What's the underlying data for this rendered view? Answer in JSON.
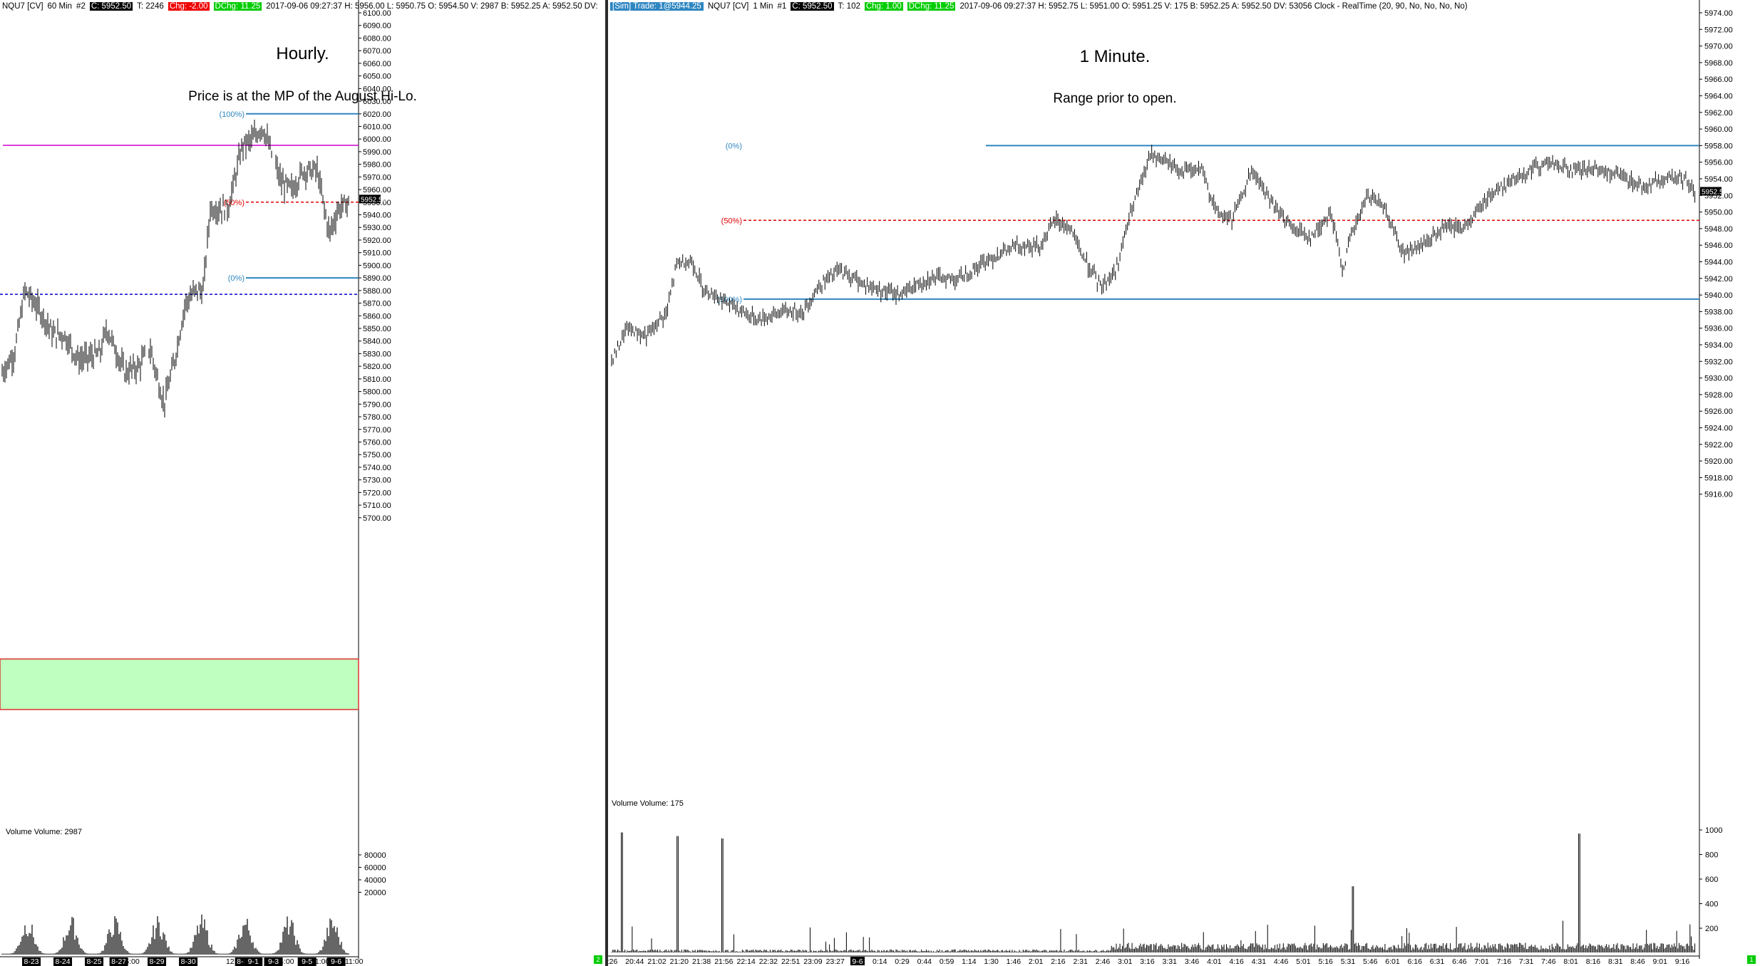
{
  "left": {
    "topbar": {
      "symbol": "NQU7 [CV]",
      "interval": "60 Min",
      "chart_num": "#2",
      "close_badge": "C: 5952.50",
      "ticks_badge": "T: 2246",
      "change_badge": "Chg: -2.00",
      "dchg_badge": "DChg: 11.25",
      "info": "2017-09-06 09:27:37 H: 5956.00 L: 5950.75 O: 5954.50 V: 2987 B: 5952.25 A: 5952.50 DV:"
    },
    "title": "Hourly.",
    "subtitle": "Price is at the MP of the August Hi-Lo.",
    "price_axis": [
      "6100.00",
      "6090.00",
      "6080.00",
      "6070.00",
      "6060.00",
      "6050.00",
      "6040.00",
      "6030.00",
      "6020.00",
      "6010.00",
      "6000.00",
      "5990.00",
      "5980.00",
      "5970.00",
      "5960.00",
      "5950.00",
      "5940.00",
      "5930.00",
      "5920.00",
      "5910.00",
      "5900.00",
      "5890.00",
      "5880.00",
      "5870.00",
      "5860.00",
      "5850.00",
      "5840.00",
      "5830.00",
      "5820.00",
      "5810.00",
      "5800.00",
      "5790.00",
      "5780.00",
      "5770.00",
      "5760.00",
      "5750.00",
      "5740.00",
      "5730.00",
      "5720.00",
      "5710.00",
      "5700.00"
    ],
    "current_price": "5952.50",
    "fib_labels": {
      "top": "(100%)",
      "mid": "(50%)",
      "bottom": "(0%)"
    },
    "volume_label": "Volume  Volume: 2987",
    "volume_axis": [
      "80000",
      "60000",
      "40000",
      "20000"
    ],
    "time_axis": [
      "8-23",
      "8-24",
      "8-25",
      "8-27",
      "5:00",
      "8-29",
      "8-30",
      "12:00",
      "8-31",
      "9-1",
      "9-3",
      "4:00",
      "9-5",
      "11:00",
      "9-6",
      "11:00"
    ],
    "status": "2"
  },
  "right": {
    "topbar": {
      "sim_badge": "[Sim]  Trade: 1@5944.25",
      "symbol": "NQU7 [CV]",
      "interval": "1 Min",
      "chart_num": "#1",
      "close_badge": "C: 5952.50",
      "ticks_badge": "T: 102",
      "change_badge": "Chg: 1.00",
      "dchg_badge": "DChg: 11.25",
      "info": "2017-09-06 09:27:37 H: 5952.75 L: 5951.00 O: 5951.25 V: 175 B: 5952.25 A: 5952.50 DV: 53056 Clock - RealTime  (20, 90, No, No, No, No)"
    },
    "title": "1 Minute.",
    "subtitle": "Range prior to open.",
    "price_axis": [
      "5974.00",
      "5972.00",
      "5970.00",
      "5968.00",
      "5966.00",
      "5964.00",
      "5962.00",
      "5960.00",
      "5958.00",
      "5956.00",
      "5954.00",
      "5952.00",
      "5950.00",
      "5948.00",
      "5946.00",
      "5944.00",
      "5942.00",
      "5940.00",
      "5938.00",
      "5936.00",
      "5934.00",
      "5932.00",
      "5930.00",
      "5928.00",
      "5926.00",
      "5924.00",
      "5922.00",
      "5920.00",
      "5918.00",
      "5916.00"
    ],
    "current_price": "5952.50",
    "fib_labels": {
      "top": "(0%)",
      "mid": "(50%)",
      "bottom": "(100%)"
    },
    "volume_label": "Volume  Volume: 175",
    "volume_axis": [
      "1000",
      "800",
      "600",
      "400",
      "200"
    ],
    "time_axis": [
      ":26",
      "20:44",
      "21:02",
      "21:20",
      "21:38",
      "21:56",
      "22:14",
      "22:32",
      "22:51",
      "23:09",
      "23:27",
      "9-6",
      "0:14",
      "0:29",
      "0:44",
      "0:59",
      "1:14",
      "1:30",
      "1:46",
      "2:01",
      "2:16",
      "2:31",
      "2:46",
      "3:01",
      "3:16",
      "3:31",
      "3:46",
      "4:01",
      "4:16",
      "4:31",
      "4:46",
      "5:01",
      "5:16",
      "5:31",
      "5:46",
      "6:01",
      "6:16",
      "6:31",
      "6:46",
      "7:01",
      "7:16",
      "7:31",
      "7:46",
      "8:01",
      "8:16",
      "8:31",
      "8:46",
      "9:01",
      "9:16"
    ],
    "status": "1"
  },
  "colors": {
    "fib_line": "#2e86c1",
    "mid_line": "#e00000",
    "magenta_line": "#d000d0",
    "dotted_blue": "#0000cc",
    "zone_fill": "#bfffbf",
    "zone_border": "#e03030"
  }
}
